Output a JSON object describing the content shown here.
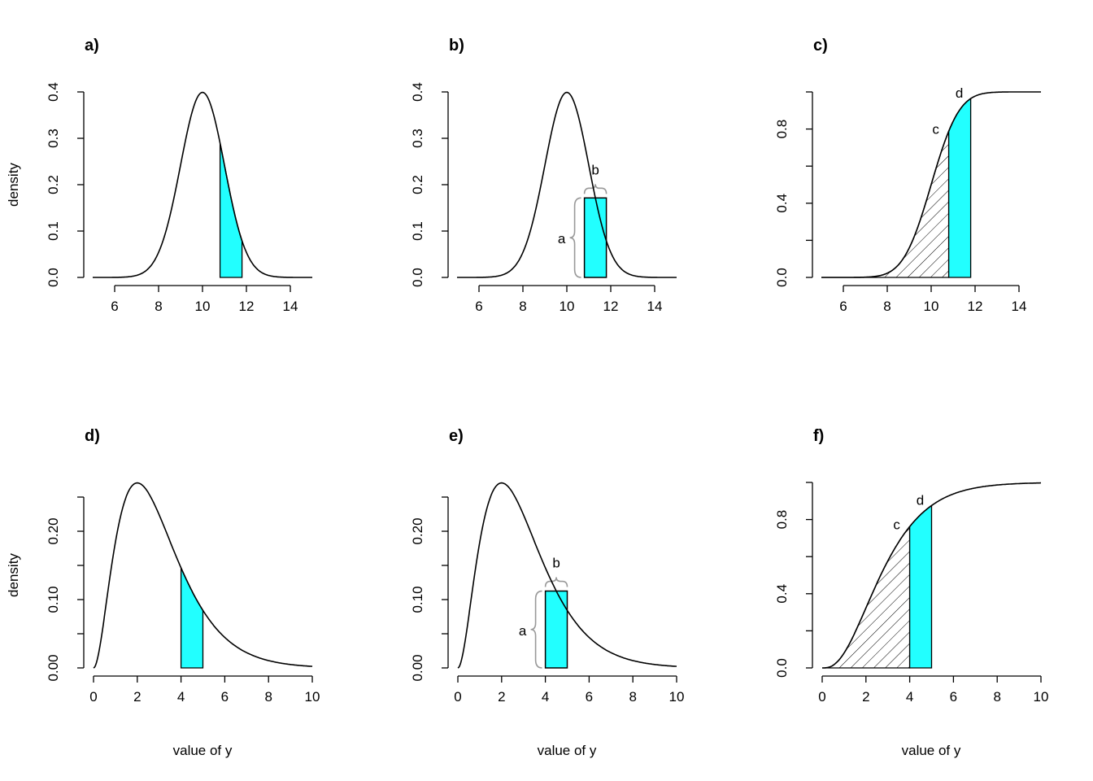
{
  "chart_data": [
    {
      "type": "line",
      "title": "a)",
      "xlabel": "",
      "ylabel": "density",
      "xlim": [
        5,
        15
      ],
      "ylim": [
        0,
        0.4
      ],
      "xticks": [
        6,
        8,
        10,
        12,
        14
      ],
      "yticks": [
        0,
        0.1,
        0.2,
        0.3,
        0.4
      ],
      "ytick_labels": [
        "0.0",
        "0.1",
        "0.2",
        "0.3",
        "0.4"
      ],
      "curve": {
        "family": "normal",
        "mean": 10,
        "sd": 1,
        "kind": "density"
      },
      "shade": {
        "style": "area",
        "from": 10.8,
        "to": 11.8,
        "color": "#22FFFF"
      }
    },
    {
      "type": "line",
      "title": "b)",
      "xlabel": "",
      "ylabel": "",
      "xlim": [
        5,
        15
      ],
      "ylim": [
        0,
        0.4
      ],
      "xticks": [
        6,
        8,
        10,
        12,
        14
      ],
      "yticks": [
        0,
        0.1,
        0.2,
        0.3,
        0.4
      ],
      "ytick_labels": [
        "0.0",
        "0.1",
        "0.2",
        "0.3",
        "0.4"
      ],
      "curve": {
        "family": "normal",
        "mean": 10,
        "sd": 1,
        "kind": "density"
      },
      "shade": {
        "style": "rectangle",
        "from": 10.8,
        "to": 11.8,
        "color": "#22FFFF"
      },
      "annotations": {
        "height_label": "a",
        "width_label": "b"
      }
    },
    {
      "type": "line",
      "title": "c)",
      "xlabel": "",
      "ylabel": "",
      "xlim": [
        5,
        15
      ],
      "ylim": [
        0,
        1
      ],
      "xticks": [
        6,
        8,
        10,
        12,
        14
      ],
      "yticks": [
        0,
        0.2,
        0.4,
        0.6,
        0.8,
        1.0
      ],
      "ytick_labels": [
        "0.0",
        "",
        "0.4",
        "",
        "0.8",
        ""
      ],
      "curve": {
        "family": "normal",
        "mean": 10,
        "sd": 1,
        "kind": "cdf"
      },
      "hatch_to": 10.8,
      "shade": {
        "style": "area",
        "from": 10.8,
        "to": 11.8,
        "color": "#22FFFF"
      },
      "annotations": {
        "lower_label": "c",
        "upper_label": "d"
      }
    },
    {
      "type": "line",
      "title": "d)",
      "xlabel": "value of y",
      "ylabel": "density",
      "xlim": [
        0,
        10
      ],
      "ylim": [
        0,
        0.25
      ],
      "xticks": [
        0,
        2,
        4,
        6,
        8,
        10
      ],
      "yticks": [
        0,
        0.05,
        0.1,
        0.15,
        0.2,
        0.25
      ],
      "ytick_labels": [
        "0.00",
        "",
        "0.10",
        "",
        "0.20",
        ""
      ],
      "curve": {
        "family": "gamma",
        "shape": 3,
        "rate": 1,
        "kind": "density"
      },
      "shade": {
        "style": "area",
        "from": 4,
        "to": 5,
        "color": "#22FFFF"
      }
    },
    {
      "type": "line",
      "title": "e)",
      "xlabel": "value of y",
      "ylabel": "",
      "xlim": [
        0,
        10
      ],
      "ylim": [
        0,
        0.25
      ],
      "xticks": [
        0,
        2,
        4,
        6,
        8,
        10
      ],
      "yticks": [
        0,
        0.05,
        0.1,
        0.15,
        0.2,
        0.25
      ],
      "ytick_labels": [
        "0.00",
        "",
        "0.10",
        "",
        "0.20",
        ""
      ],
      "curve": {
        "family": "gamma",
        "shape": 3,
        "rate": 1,
        "kind": "density"
      },
      "shade": {
        "style": "rectangle",
        "from": 4,
        "to": 5,
        "color": "#22FFFF"
      },
      "annotations": {
        "height_label": "a",
        "width_label": "b"
      }
    },
    {
      "type": "line",
      "title": "f)",
      "xlabel": "value of y",
      "ylabel": "",
      "xlim": [
        0,
        10
      ],
      "ylim": [
        0,
        1
      ],
      "xticks": [
        0,
        2,
        4,
        6,
        8,
        10
      ],
      "yticks": [
        0,
        0.2,
        0.4,
        0.6,
        0.8,
        1.0
      ],
      "ytick_labels": [
        "0.0",
        "",
        "0.4",
        "",
        "0.8",
        ""
      ],
      "curve": {
        "family": "gamma",
        "shape": 3,
        "rate": 1,
        "kind": "cdf"
      },
      "hatch_to": 4,
      "shade": {
        "style": "area",
        "from": 4,
        "to": 5,
        "color": "#22FFFF"
      },
      "annotations": {
        "lower_label": "c",
        "upper_label": "d"
      }
    }
  ]
}
